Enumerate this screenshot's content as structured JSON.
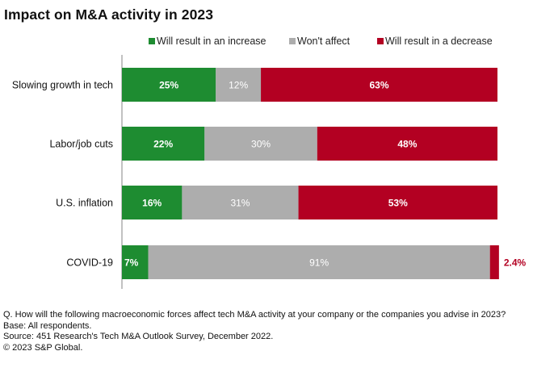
{
  "chart_data": {
    "type": "bar",
    "orientation": "horizontal",
    "stacked": true,
    "title": "Impact on M&A activity in 2023",
    "categories": [
      "Slowing growth in tech",
      "Labor/job cuts",
      "U.S. inflation",
      "COVID-19"
    ],
    "series": [
      {
        "name": "Will result in an increase",
        "color": "#1e8c31",
        "values": [
          25,
          22,
          16,
          7
        ],
        "labels": [
          "25%",
          "22%",
          "16%",
          "7%"
        ]
      },
      {
        "name": "Won't affect",
        "color": "#adadad",
        "values": [
          12,
          30,
          31,
          91
        ],
        "labels": [
          "12%",
          "30%",
          "31%",
          "91%"
        ]
      },
      {
        "name": "Will result in a decrease",
        "color": "#b30022",
        "values": [
          63,
          48,
          53,
          2.4
        ],
        "labels": [
          "63%",
          "48%",
          "53%",
          "2.4%"
        ]
      }
    ],
    "xlim": [
      0,
      100
    ],
    "xlabel": "",
    "ylabel": "",
    "grid": false,
    "legend": "top-right",
    "label_color_inside": "#ffffff",
    "label_color_outside": "#b30022"
  },
  "footer": {
    "question": "Q. How will the following macroeconomic forces affect tech M&A activity at your company or the companies you advise in 2023?",
    "base": "Base: All respondents.",
    "source": "Source: 451 Research's Tech M&A Outlook Survey, December 2022.",
    "copyright": "© 2023 S&P Global."
  }
}
